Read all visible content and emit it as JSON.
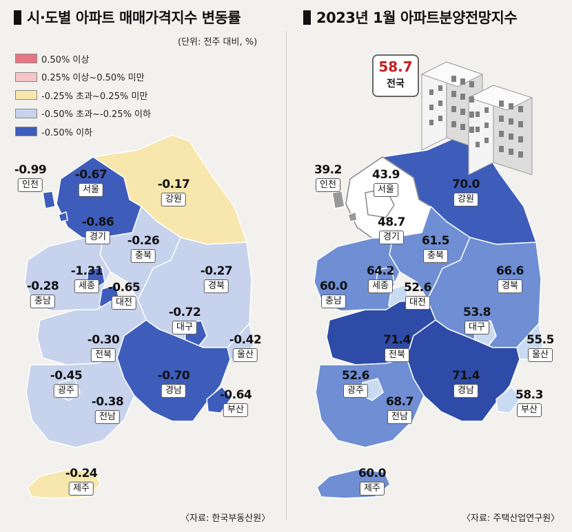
{
  "left": {
    "title": "시·도별 아파트 매매가격지수 변동률",
    "unit": "(단위: 전주 대비, %)",
    "source": "〈자료: 한국부동산원〉",
    "legend": [
      {
        "label": "0.50% 이상",
        "color": "#e87585"
      },
      {
        "label": "0.25% 이상~0.50% 미만",
        "color": "#f7c4c8"
      },
      {
        "label": "-0.25% 초과~0.25% 미만",
        "color": "#f7e7ad"
      },
      {
        "label": "-0.50% 초과~-0.25% 이하",
        "color": "#c7d3ed"
      },
      {
        "label": "-0.50% 이하",
        "color": "#3e5dbb"
      }
    ],
    "regions": {
      "incheon": {
        "name": "인천",
        "value": "-0.99"
      },
      "seoul": {
        "name": "서울",
        "value": "-0.67"
      },
      "gyeonggi": {
        "name": "경기",
        "value": "-0.86"
      },
      "gangwon": {
        "name": "강원",
        "value": "-0.17"
      },
      "chungbuk": {
        "name": "충북",
        "value": "-0.26"
      },
      "sejong": {
        "name": "세종",
        "value": "-1.31"
      },
      "chungnam": {
        "name": "충남",
        "value": "-0.28"
      },
      "daejeon": {
        "name": "대전",
        "value": "-0.65"
      },
      "gyeongbuk": {
        "name": "경북",
        "value": "-0.27"
      },
      "daegu": {
        "name": "대구",
        "value": "-0.72"
      },
      "ulsan": {
        "name": "울산",
        "value": "-0.42"
      },
      "jeonbuk": {
        "name": "전북",
        "value": "-0.30"
      },
      "gwangju": {
        "name": "광주",
        "value": "-0.45"
      },
      "gyeongnam": {
        "name": "경남",
        "value": "-0.70"
      },
      "busan": {
        "name": "부산",
        "value": "-0.64"
      },
      "jeonnam": {
        "name": "전남",
        "value": "-0.38"
      },
      "jeju": {
        "name": "제주",
        "value": "-0.24"
      }
    }
  },
  "right": {
    "title": "2023년 1월 아파트분양전망지수",
    "source": "〈자료: 주택산업연구원〉",
    "national": {
      "value": "58.7",
      "name": "전국"
    },
    "regions": {
      "incheon": {
        "name": "인천",
        "value": "39.2"
      },
      "seoul": {
        "name": "서울",
        "value": "43.9"
      },
      "gyeonggi": {
        "name": "경기",
        "value": "48.7"
      },
      "gangwon": {
        "name": "강원",
        "value": "70.0"
      },
      "chungbuk": {
        "name": "충북",
        "value": "61.5"
      },
      "sejong": {
        "name": "세종",
        "value": "64.2"
      },
      "chungnam": {
        "name": "충남",
        "value": "60.0"
      },
      "daejeon": {
        "name": "대전",
        "value": "52.6"
      },
      "gyeongbuk": {
        "name": "경북",
        "value": "66.6"
      },
      "daegu": {
        "name": "대구",
        "value": "53.8"
      },
      "ulsan": {
        "name": "울산",
        "value": "55.5"
      },
      "jeonbuk": {
        "name": "전북",
        "value": "71.4"
      },
      "gwangju": {
        "name": "광주",
        "value": "52.6"
      },
      "gyeongnam": {
        "name": "경남",
        "value": "71.4"
      },
      "busan": {
        "name": "부산",
        "value": "58.3"
      },
      "jeonnam": {
        "name": "전남",
        "value": "68.7"
      },
      "jeju": {
        "name": "제주",
        "value": "60.0"
      }
    }
  }
}
